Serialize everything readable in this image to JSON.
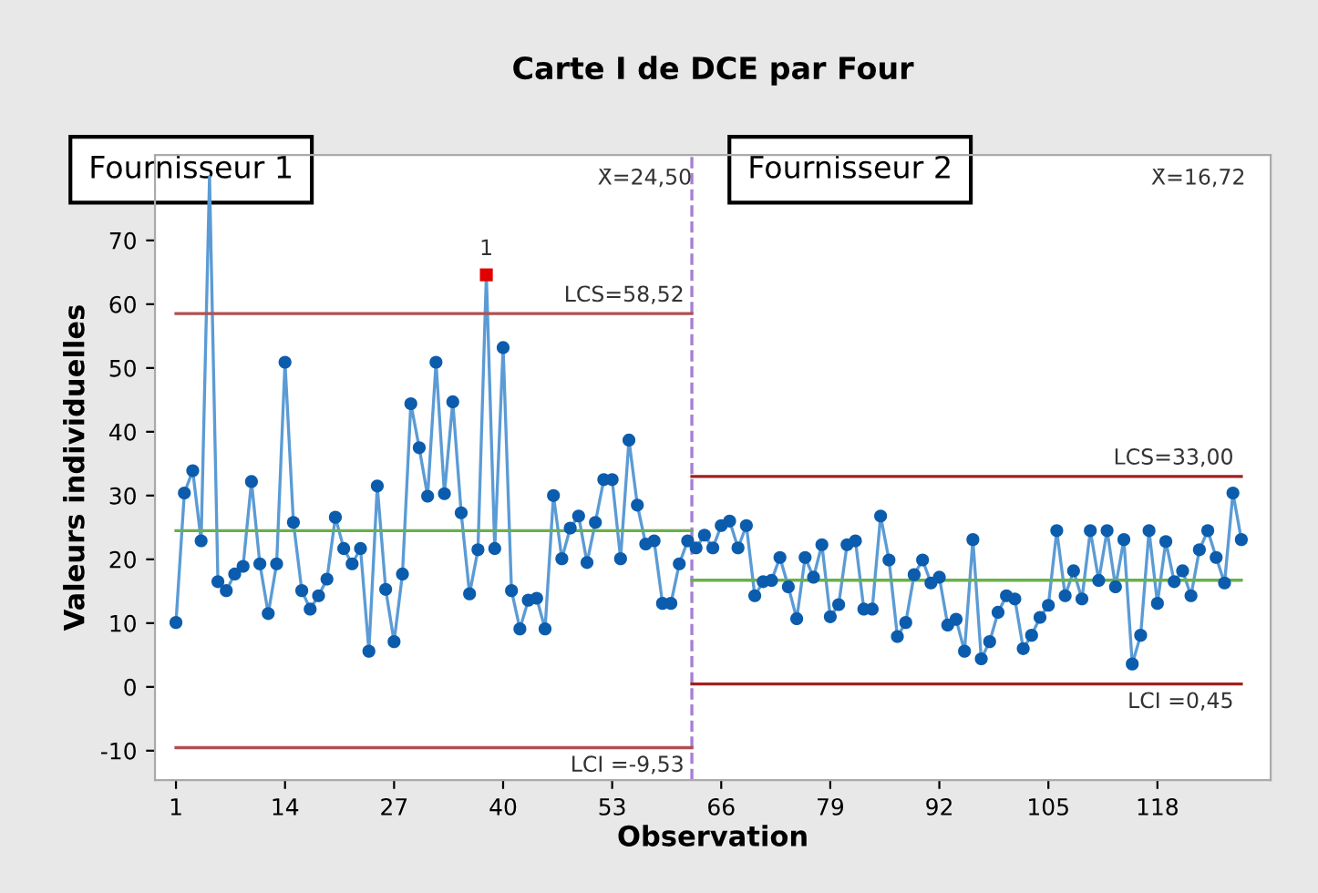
{
  "chart_data": {
    "type": "line",
    "title": "Carte I de DCE par Four",
    "xlabel": "Observation",
    "ylabel": "Valeurs individuelles",
    "x": [
      1,
      2,
      3,
      4,
      5,
      6,
      7,
      8,
      9,
      10,
      11,
      12,
      13,
      14,
      15,
      16,
      17,
      18,
      19,
      20,
      21,
      22,
      23,
      24,
      25,
      26,
      27,
      28,
      29,
      30,
      31,
      32,
      33,
      34,
      35,
      36,
      37,
      38,
      39,
      40,
      41,
      42,
      43,
      44,
      45,
      46,
      47,
      48,
      49,
      50,
      51,
      52,
      53,
      54,
      55,
      56,
      57,
      58,
      59,
      60,
      61,
      62,
      63,
      64,
      65,
      66,
      67,
      68,
      69,
      70,
      71,
      72,
      73,
      74,
      75,
      76,
      77,
      78,
      79,
      80,
      81,
      82,
      83,
      84,
      85,
      86,
      87,
      88,
      89,
      90,
      91,
      92,
      93,
      94,
      95,
      96,
      97,
      98,
      99,
      100,
      101,
      102,
      103,
      104,
      105,
      106,
      107,
      108,
      109,
      110,
      111,
      112,
      113,
      114,
      115,
      116,
      117,
      118,
      119,
      120,
      121,
      122,
      123,
      124,
      125,
      126,
      127,
      128
    ],
    "series": [
      {
        "color": "#5b9bd5",
        "marker": "none",
        "values": [
          10.1,
          30.4,
          33.9,
          22.9,
          80,
          16.5,
          15.1,
          17.7,
          18.9,
          32.2,
          19.3,
          11.5,
          19.3,
          50.9,
          25.8,
          15.1,
          12.2,
          14.3,
          16.9,
          26.6,
          21.7,
          19.3,
          21.7,
          5.6,
          31.5,
          15.3,
          7.1,
          17.7,
          44.4,
          37.5,
          29.9,
          50.9,
          30.3,
          44.7,
          27.3,
          14.6,
          21.5,
          64.6,
          21.7,
          53.2,
          15.1,
          9.1,
          13.6,
          13.9,
          9.1,
          30.0,
          20.1,
          24.9,
          26.8,
          19.5,
          25.8,
          32.5,
          32.5,
          20.1,
          38.7,
          28.5,
          22.4,
          22.9,
          13.1,
          13.1,
          19.3,
          22.9,
          21.8,
          23.8,
          21.8,
          25.3,
          26.0,
          21.8,
          25.3,
          14.3,
          16.5,
          16.7,
          20.3,
          15.7,
          10.7,
          20.3,
          17.2,
          22.3,
          11.0,
          12.9,
          22.3,
          22.9,
          12.2,
          12.2,
          26.8,
          19.9,
          7.9,
          10.1,
          17.6,
          19.9,
          16.3,
          17.2,
          9.7,
          10.6,
          5.6,
          23.1,
          4.4,
          7.1,
          11.7,
          14.3,
          13.8,
          6.0,
          8.1,
          10.9,
          12.8,
          24.5,
          14.3,
          18.2,
          13.8,
          24.5,
          16.7,
          24.5,
          15.7,
          23.1,
          3.6,
          8.1,
          24.5,
          13.1,
          22.8,
          16.5,
          18.2,
          14.3,
          21.5,
          24.5,
          20.3,
          16.3,
          30.4,
          23.1
        ]
      },
      {
        "type": "scatter",
        "color": "#0b5cad",
        "marker": "circle",
        "values": [
          10.1,
          30.4,
          33.9,
          22.9,
          null,
          16.5,
          15.1,
          17.7,
          18.9,
          32.2,
          19.3,
          11.5,
          19.3,
          50.9,
          25.8,
          15.1,
          12.2,
          14.3,
          16.9,
          26.6,
          21.7,
          19.3,
          21.7,
          5.6,
          31.5,
          15.3,
          7.1,
          17.7,
          44.4,
          37.5,
          29.9,
          50.9,
          30.3,
          44.7,
          27.3,
          14.6,
          21.5,
          null,
          21.7,
          53.2,
          15.1,
          9.1,
          13.6,
          13.9,
          9.1,
          30.0,
          20.1,
          24.9,
          26.8,
          19.5,
          25.8,
          32.5,
          32.5,
          20.1,
          38.7,
          28.5,
          22.4,
          22.9,
          13.1,
          13.1,
          19.3,
          22.9,
          21.8,
          23.8,
          21.8,
          25.3,
          26.0,
          21.8,
          25.3,
          14.3,
          16.5,
          16.7,
          20.3,
          15.7,
          10.7,
          20.3,
          17.2,
          22.3,
          11.0,
          12.9,
          22.3,
          22.9,
          12.2,
          12.2,
          26.8,
          19.9,
          7.9,
          10.1,
          17.6,
          19.9,
          16.3,
          17.2,
          9.7,
          10.6,
          5.6,
          23.1,
          4.4,
          7.1,
          11.7,
          14.3,
          13.8,
          6.0,
          8.1,
          10.9,
          12.8,
          24.5,
          14.3,
          18.2,
          13.8,
          24.5,
          16.7,
          24.5,
          15.7,
          23.1,
          3.6,
          8.1,
          24.5,
          13.1,
          22.8,
          16.5,
          18.2,
          14.3,
          21.5,
          24.5,
          20.3,
          16.3,
          30.4,
          23.1
        ]
      },
      {
        "type": "scatter",
        "color": "#e00000",
        "marker": "square",
        "x": [
          38
        ],
        "values": [
          64.6
        ]
      },
      {
        "type": "line",
        "color": "#b05050",
        "marker": "none",
        "x": [
          1,
          62.5
        ],
        "values": [
          58.52,
          58.52
        ]
      },
      {
        "type": "line",
        "color": "#b05050",
        "marker": "none",
        "x": [
          1,
          62.5
        ],
        "values": [
          -9.53,
          -9.53
        ]
      },
      {
        "type": "line",
        "color": "#6ab04c",
        "marker": "none",
        "x": [
          1,
          62.5
        ],
        "values": [
          24.5,
          24.5
        ]
      },
      {
        "type": "line",
        "color": "#a02020",
        "marker": "none",
        "x": [
          62.5,
          128
        ],
        "values": [
          33.0,
          33.0
        ]
      },
      {
        "type": "line",
        "color": "#a02020",
        "marker": "none",
        "x": [
          62.5,
          128
        ],
        "values": [
          0.45,
          0.45
        ]
      },
      {
        "type": "line",
        "color": "#6ab04c",
        "marker": "none",
        "x": [
          62.5,
          128
        ],
        "values": [
          16.72,
          16.72
        ]
      }
    ],
    "ref_lines": [
      {
        "axis": "x",
        "value": 62.5,
        "color": "#a57fd8",
        "line_style": "dashed"
      }
    ],
    "annotations": [
      "Fournisseur 1",
      "Fournisseur 2",
      "X̄=24,50",
      "X̄=16,72",
      {
        "text": "LCS=58,52",
        "x": 62.5,
        "y": 58.52
      },
      {
        "text": "LCI =-9,53",
        "x": 62.5,
        "y": -9.53
      },
      {
        "text": "LCS=33,00",
        "x": 128,
        "y": 33.0
      },
      {
        "text": "LCI =0,45",
        "x": 128,
        "y": 0.45
      },
      {
        "text": "1",
        "x": 38,
        "y": 64.6
      }
    ],
    "xlim": [
      -1.5,
      131.5
    ],
    "ylim": [
      -14.6,
      83.4
    ],
    "xticks": [
      1,
      14,
      27,
      40,
      53,
      66,
      79,
      92,
      105,
      118
    ],
    "yticks": [
      -10,
      0,
      10,
      20,
      30,
      40,
      50,
      60,
      70
    ],
    "grid": false
  }
}
